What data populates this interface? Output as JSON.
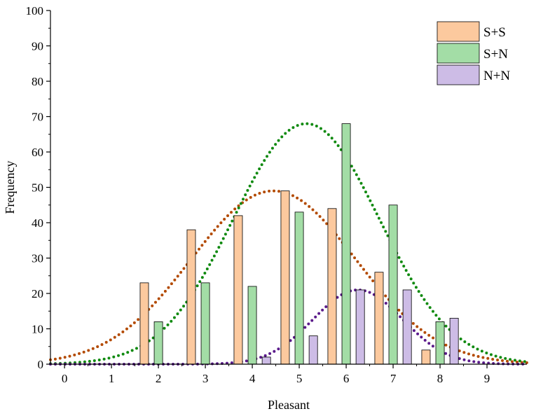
{
  "chart_data": {
    "type": "bar",
    "xlabel": "Pleasant",
    "ylabel": "Frequency",
    "xlim": [
      -0.3,
      9.85
    ],
    "ylim": [
      0,
      100
    ],
    "x_ticks": [
      0,
      1,
      2,
      3,
      4,
      5,
      6,
      7,
      8,
      9
    ],
    "y_ticks": [
      0,
      10,
      20,
      30,
      40,
      50,
      60,
      70,
      80,
      90,
      100
    ],
    "grid": false,
    "legend_position": "top-right",
    "series": [
      {
        "name": "S+S",
        "color": "#fcc99e",
        "fit_color": "#b34a00",
        "x": [
          2,
          3,
          4,
          5,
          6,
          7,
          8
        ],
        "values": [
          23,
          38,
          42,
          49,
          44,
          26,
          4
        ],
        "fit": {
          "mean": 4.45,
          "sd": 1.75,
          "peak": 49
        }
      },
      {
        "name": "S+N",
        "color": "#a3dda6",
        "fit_color": "#108a10",
        "x": [
          2,
          3,
          4,
          5,
          6,
          7,
          8
        ],
        "values": [
          12,
          23,
          22,
          43,
          68,
          45,
          12
        ],
        "fit": {
          "mean": 5.15,
          "sd": 1.55,
          "peak": 68
        }
      },
      {
        "name": "N+N",
        "color": "#cdbce6",
        "fit_color": "#5a1a8a",
        "x": [
          3,
          4,
          5,
          6,
          7,
          8
        ],
        "values": [
          0,
          2,
          8,
          21,
          21,
          13
        ],
        "fit": {
          "mean": 6.25,
          "sd": 0.95,
          "peak": 21
        }
      }
    ]
  }
}
